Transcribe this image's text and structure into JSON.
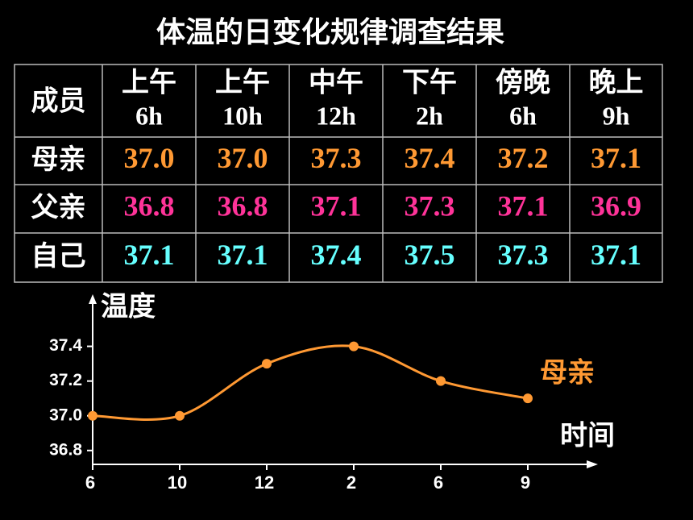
{
  "title": "体温的日变化规律调查结果",
  "table": {
    "header": [
      [
        "成员"
      ],
      [
        "上午",
        "6h"
      ],
      [
        "上午",
        "10h"
      ],
      [
        "中午",
        "12h"
      ],
      [
        "下午",
        "2h"
      ],
      [
        "傍晚",
        "6h"
      ],
      [
        "晚上",
        "9h"
      ]
    ],
    "rows": [
      [
        "母亲",
        "37.0",
        "37.0",
        "37.3",
        "37.4",
        "37.2",
        "37.1"
      ],
      [
        "父亲",
        "36.8",
        "36.8",
        "37.1",
        "37.3",
        "37.1",
        "36.9"
      ],
      [
        "自己",
        "37.1",
        "37.1",
        "37.4",
        "37.5",
        "37.3",
        "37.1"
      ]
    ]
  },
  "chart_data": {
    "type": "line",
    "y_label": "温度",
    "x_label": "时间",
    "categories": [
      "6",
      "10",
      "12",
      "2",
      "6",
      "9"
    ],
    "series": [
      {
        "name": "母亲",
        "color": "#ff9933",
        "values": [
          37.0,
          37.0,
          37.3,
          37.4,
          37.2,
          37.1
        ]
      }
    ],
    "ylim": [
      36.72,
      37.7
    ],
    "yticks": [
      36.8,
      {
        "value": 37.0,
        "label": "37.0"
      },
      37.2,
      37.4
    ]
  }
}
